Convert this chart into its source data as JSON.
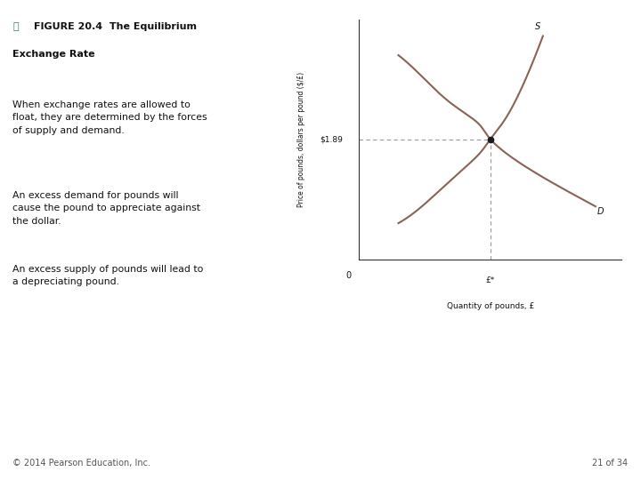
{
  "background_color": "#ffffff",
  "figure_width": 7.2,
  "figure_height": 5.4,
  "dpi": 100,
  "figure_label_color": "#2e7d5e",
  "body_texts": [
    "When exchange rates are allowed to\nfloat, they are determined by the forces\nof supply and demand.",
    "An excess demand for pounds will\ncause the pound to appreciate against\nthe dollar.",
    "An excess supply of pounds will lead to\na depreciating pound."
  ],
  "footer_text": "© 2014 Pearson Education, Inc.",
  "footer_page": "21 of 34",
  "curve_color": "#8B6355",
  "equilibrium_price_label": "$1.89",
  "equilibrium_qty_label": "£*",
  "xlabel": "Quantity of pounds, £",
  "ylabel": "Price of pounds, dollars per pound ($/£)",
  "supply_label": "S",
  "demand_label": "D",
  "origin_label": "0",
  "dashed_color": "#999999",
  "dot_color": "#1a1a1a",
  "text_color": "#111111",
  "eq_x": 5.0,
  "eq_y": 5.0,
  "xlim": [
    0,
    10
  ],
  "ylim": [
    0,
    10
  ]
}
